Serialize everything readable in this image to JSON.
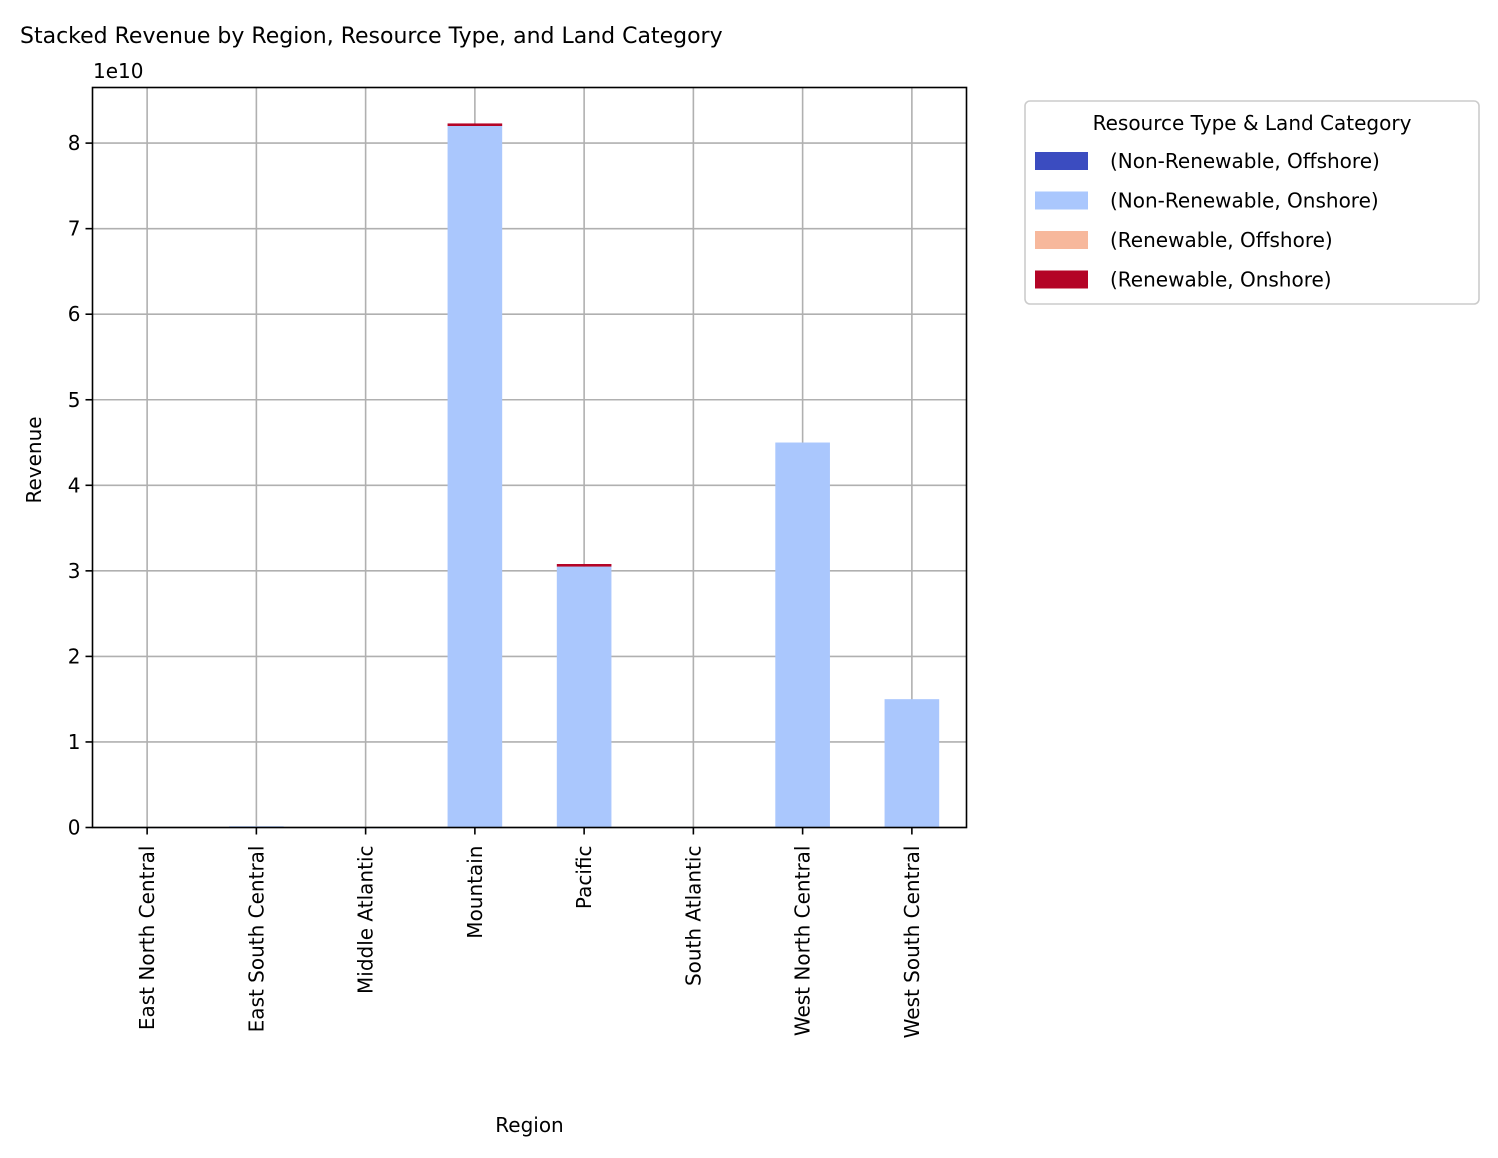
{
  "chart_data": {
    "type": "bar",
    "stacked": true,
    "title": "Stacked Revenue by Region, Resource Type, and Land Category",
    "xlabel": "Region",
    "ylabel": "Revenue",
    "y_scale_label": "1e10",
    "y_multiplier": 10000000000,
    "ylim": [
      0,
      8.65
    ],
    "yticks": [
      0,
      1,
      2,
      3,
      4,
      5,
      6,
      7,
      8
    ],
    "ytick_labels": [
      "0",
      "1",
      "2",
      "3",
      "4",
      "5",
      "6",
      "7",
      "8"
    ],
    "grid": true,
    "legend": {
      "title": "Resource Type & Land Category",
      "placement": "outside-top-right"
    },
    "categories": [
      "East North Central",
      "East South Central",
      "Middle Atlantic",
      "Mountain",
      "Pacific",
      "South Atlantic",
      "West North Central",
      "West South Central"
    ],
    "series": [
      {
        "name": "(Non-Renewable, Offshore)",
        "color": "#3b4cc0",
        "values": [
          0,
          0,
          0,
          0,
          0,
          0,
          0,
          0
        ]
      },
      {
        "name": "(Non-Renewable, Onshore)",
        "color": "#aac7fd",
        "values": [
          0.005,
          0.015,
          0.003,
          8.2,
          3.05,
          0.005,
          4.5,
          1.5
        ]
      },
      {
        "name": "(Renewable, Offshore)",
        "color": "#f7b89c",
        "values": [
          0,
          0,
          0,
          0,
          0,
          0,
          0,
          0
        ]
      },
      {
        "name": "(Renewable, Onshore)",
        "color": "#b40426",
        "values": [
          0,
          0,
          0,
          0.03,
          0.03,
          0,
          0,
          0
        ]
      }
    ]
  }
}
